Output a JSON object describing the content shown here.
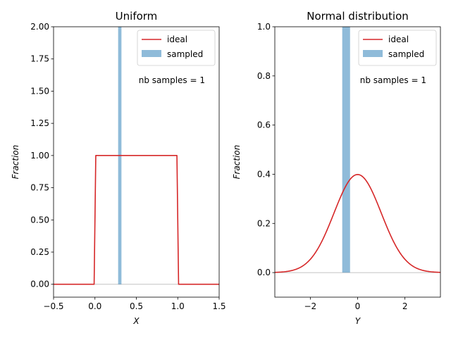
{
  "chart_data": [
    {
      "type": "line",
      "title": "Uniform",
      "xlabel": "X",
      "ylabel": "Fraction",
      "xlim": [
        -0.5,
        1.5
      ],
      "ylim": [
        -0.1,
        2.0
      ],
      "xticks": [
        -0.5,
        0.0,
        0.5,
        1.0,
        1.5
      ],
      "xtick_labels": [
        "−0.5",
        "0.0",
        "0.5",
        "1.0",
        "1.5"
      ],
      "yticks": [
        0.0,
        0.25,
        0.5,
        0.75,
        1.0,
        1.25,
        1.5,
        1.75,
        2.0
      ],
      "ytick_labels": [
        "0.00",
        "0.25",
        "0.50",
        "0.75",
        "1.00",
        "1.25",
        "1.50",
        "1.75",
        "2.00"
      ],
      "series": [
        {
          "name": "ideal",
          "kind": "line",
          "color": "#d62728",
          "x": [
            -0.5,
            -0.01,
            0.01,
            0.99,
            1.01,
            1.5
          ],
          "y": [
            0,
            0,
            1,
            1,
            0,
            0
          ]
        },
        {
          "name": "sampled",
          "kind": "histogram",
          "color": "#1f77b4",
          "bins": [
            {
              "x0": 0.28,
              "x1": 0.32,
              "y": 2.0
            }
          ]
        }
      ],
      "baseline": 0,
      "legend": {
        "position": "top-right",
        "entries": [
          "ideal",
          "sampled"
        ]
      },
      "annotation": "nb samples = 1"
    },
    {
      "type": "line",
      "title": "Normal distribution",
      "xlabel": "Y",
      "ylabel": "Fraction",
      "xlim": [
        -3.5,
        3.5
      ],
      "ylim": [
        -0.1,
        1.0
      ],
      "xticks": [
        -2,
        0,
        2
      ],
      "xtick_labels": [
        "−2",
        "0",
        "2"
      ],
      "yticks": [
        0.0,
        0.2,
        0.4,
        0.6,
        0.8,
        1.0
      ],
      "ytick_labels": [
        "0.0",
        "0.2",
        "0.4",
        "0.6",
        "0.8",
        "1.0"
      ],
      "series": [
        {
          "name": "ideal",
          "kind": "normal_pdf",
          "color": "#d62728",
          "mean": 0,
          "std": 1,
          "x_range": [
            -3.5,
            3.5
          ]
        },
        {
          "name": "sampled",
          "kind": "histogram",
          "color": "#1f77b4",
          "bins": [
            {
              "x0": -0.65,
              "x1": -0.32,
              "y": 1.0
            }
          ]
        }
      ],
      "baseline": 0,
      "legend": {
        "position": "top-right",
        "entries": [
          "ideal",
          "sampled"
        ]
      },
      "annotation": "nb samples = 1"
    }
  ]
}
